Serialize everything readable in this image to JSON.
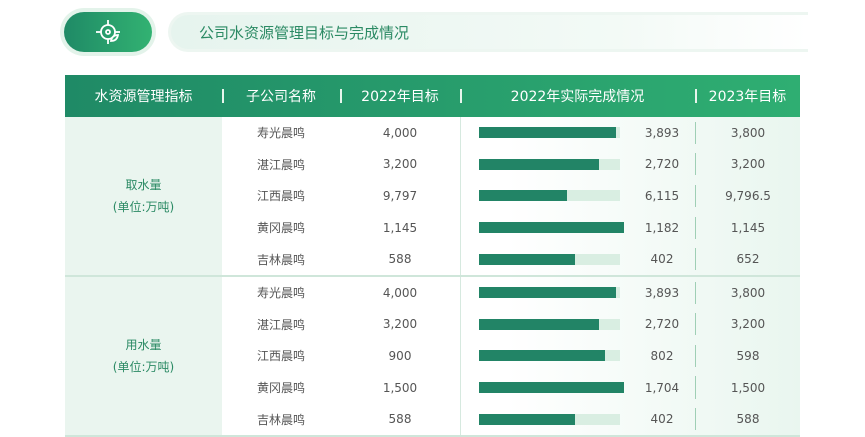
{
  "title": "公司水资源管理目标与完成情况",
  "icon": "target-leaf-icon",
  "colors": {
    "accent": "#228466",
    "track": "#d9eee2",
    "header": "#2fae72"
  },
  "headers": [
    "水资源管理指标",
    "子公司名称",
    "2022年目标",
    "2022年实际完成情况",
    "2023年目标"
  ],
  "groups": [
    {
      "name": "取水量",
      "unit": "(单位:万吨)",
      "rows": [
        {
          "company": "寿光晨鸣",
          "target2022": "4,000",
          "actual2022": "3,893",
          "target2023": "3,800"
        },
        {
          "company": "湛江晨鸣",
          "target2022": "3,200",
          "actual2022": "2,720",
          "target2023": "3,200"
        },
        {
          "company": "江西晨鸣",
          "target2022": "9,797",
          "actual2022": "6,115",
          "target2023": "9,796.5"
        },
        {
          "company": "黄冈晨鸣",
          "target2022": "1,145",
          "actual2022": "1,182",
          "target2023": "1,145"
        },
        {
          "company": "吉林晨鸣",
          "target2022": "588",
          "actual2022": "402",
          "target2023": "652"
        }
      ]
    },
    {
      "name": "用水量",
      "unit": "(单位:万吨)",
      "rows": [
        {
          "company": "寿光晨鸣",
          "target2022": "4,000",
          "actual2022": "3,893",
          "target2023": "3,800"
        },
        {
          "company": "湛江晨鸣",
          "target2022": "3,200",
          "actual2022": "2,720",
          "target2023": "3,200"
        },
        {
          "company": "江西晨鸣",
          "target2022": "900",
          "actual2022": "802",
          "target2023": "598"
        },
        {
          "company": "黄冈晨鸣",
          "target2022": "1,500",
          "actual2022": "1,704",
          "target2023": "1,500"
        },
        {
          "company": "吉林晨鸣",
          "target2022": "588",
          "actual2022": "402",
          "target2023": "588"
        }
      ]
    }
  ]
}
